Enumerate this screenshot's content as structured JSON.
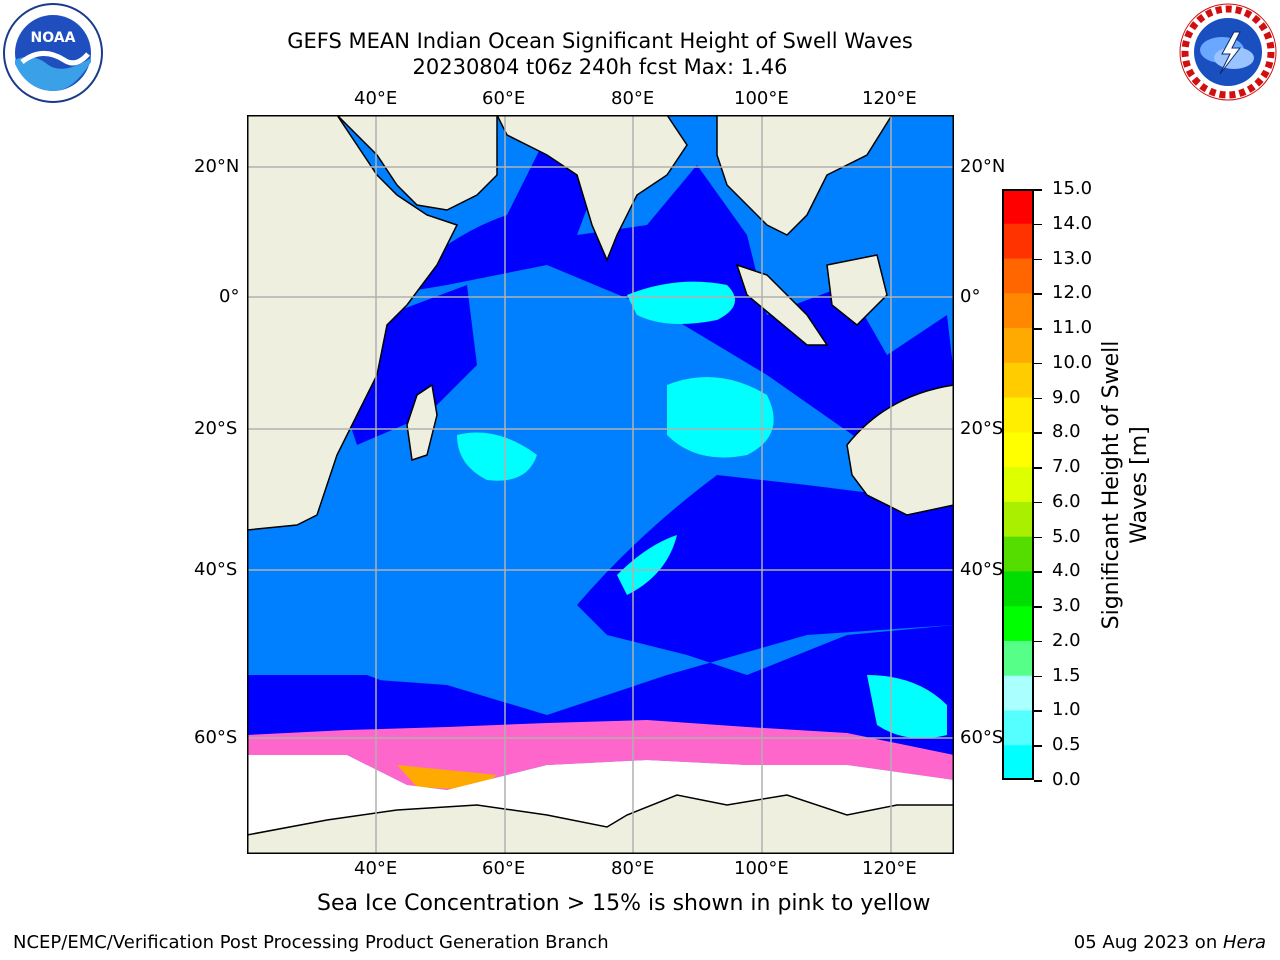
{
  "header": {
    "title_line1": "GEFS MEAN Indian Ocean Significant Height of Swell Waves",
    "title_line2": "20230804 t06z 240h fcst   Max: 1.46"
  },
  "logos": {
    "left": {
      "name": "noaa-logo",
      "text": "NOAA",
      "ring_text": "NATIONAL OCEANIC AND ATMOSPHERIC ADMINISTRATION · U.S. DEPARTMENT OF COMMERCE"
    },
    "right": {
      "name": "nws-logo",
      "ring_text": "NATIONAL WEATHER SERVICE"
    }
  },
  "map": {
    "lon_ticks_top": [
      "40°E",
      "60°E",
      "80°E",
      "100°E",
      "120°E"
    ],
    "lon_ticks_bottom": [
      "40°E",
      "60°E",
      "80°E",
      "100°E",
      "120°E"
    ],
    "lat_ticks_left": [
      "20°N",
      "0°",
      "20°S",
      "40°S",
      "60°S"
    ],
    "lat_ticks_right": [
      "20°N",
      "0°",
      "20°S",
      "40°S",
      "60°S"
    ],
    "colors": {
      "land": "#efefdf",
      "ocean_0_05": "#0000ff",
      "ocean_05_10": "#0080ff",
      "ocean_10_15": "#00ffff",
      "ice": "#ff66cc",
      "grid": "#b0b0b0"
    }
  },
  "colorbar": {
    "label_line1": "Significant Height of Swell",
    "label_line2": "Waves [m]",
    "ticks": [
      "15.0",
      "14.0",
      "13.0",
      "12.0",
      "11.0",
      "10.0",
      "9.0",
      "8.0",
      "7.0",
      "6.0",
      "5.0",
      "4.0",
      "3.0",
      "2.0",
      "1.5",
      "1.0",
      "0.5",
      "0.0"
    ],
    "colors": [
      "#ff0000",
      "#ff3300",
      "#ff6600",
      "#ff8800",
      "#ffaa00",
      "#ffcc00",
      "#ffee00",
      "#ffff00",
      "#ddff00",
      "#aaee00",
      "#55dd00",
      "#00dd00",
      "#00ff00",
      "#55ff88",
      "#aaffff",
      "#55ffff",
      "#00ffff",
      "#0080ff",
      "#0000ff"
    ]
  },
  "caption": "Sea Ice Concentration > 15% is shown in pink to yellow",
  "footer": {
    "left": "NCEP/EMC/Verification Post Processing Product Generation Branch",
    "right_date": "05 Aug 2023 on ",
    "right_host": "Hera"
  }
}
